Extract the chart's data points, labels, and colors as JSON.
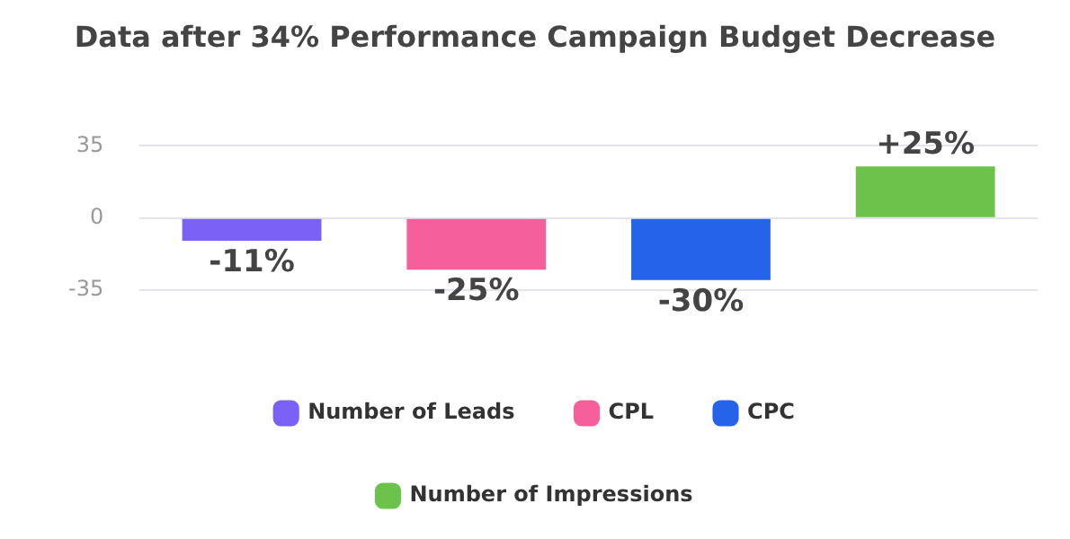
{
  "chart_data": {
    "type": "bar",
    "title": "Data after 34% Performance Campaign Budget Decrease",
    "categories": [
      null,
      null,
      null,
      null
    ],
    "series": [
      {
        "name": "Number of Leads",
        "color": "#7b61f5",
        "values": [
          -11,
          null,
          null,
          null
        ],
        "value_labels": [
          "-11%",
          null,
          null,
          null
        ]
      },
      {
        "name": "CPL",
        "color": "#f5609a",
        "values": [
          null,
          -25,
          null,
          null
        ],
        "value_labels": [
          null,
          "-25%",
          null,
          null
        ]
      },
      {
        "name": "CPC",
        "color": "#2563eb",
        "values": [
          null,
          null,
          -30,
          null
        ],
        "value_labels": [
          null,
          null,
          "-30%",
          null
        ]
      },
      {
        "name": "Number of Impressions",
        "color": "#6cc24a",
        "values": [
          null,
          null,
          null,
          25
        ],
        "value_labels": [
          null,
          null,
          null,
          "+25%"
        ]
      }
    ],
    "ylim": [
      -35,
      35
    ],
    "yticks": [
      -35,
      0,
      35
    ],
    "grid": "y",
    "legend": "bottom"
  }
}
